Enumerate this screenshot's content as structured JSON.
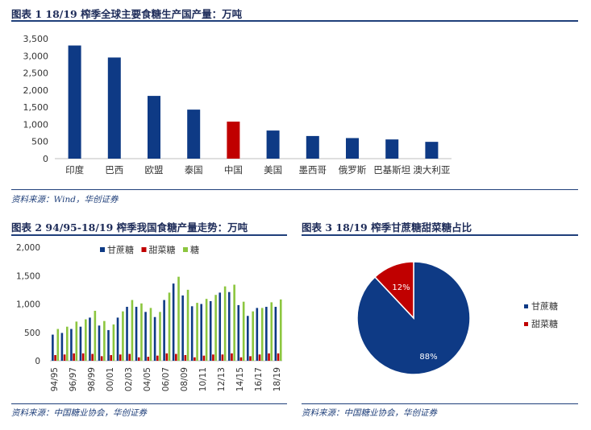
{
  "figure1": {
    "title": "图表 1    18/19 榨季全球主要食糖生产国产量：万吨",
    "source": "资料来源：Wind，华创证券",
    "color_default": "#0e3a85",
    "color_highlight": "#c00000"
  },
  "figure2": {
    "title": "图表 2    94/95-18/19 榨季我国食糖产量走势：万吨",
    "source": "资料来源：中国糖业协会，华创证券"
  },
  "figure3": {
    "title": "图表 3    18/19 榨季甘蔗糖甜菜糖占比",
    "source": "资料来源：中国糖业协会，华创证券"
  },
  "chart_data": [
    {
      "type": "bar",
      "categories": [
        "印度",
        "巴西",
        "欧盟",
        "泰国",
        "中国",
        "美国",
        "墨西哥",
        "俄罗斯",
        "巴基斯坦",
        "澳大利亚"
      ],
      "values": [
        3300,
        2950,
        1830,
        1430,
        1080,
        820,
        660,
        600,
        560,
        490
      ],
      "highlight_index": 4,
      "ylim": [
        0,
        3500
      ],
      "yticks": [
        "0",
        "500",
        "1,000",
        "1,500",
        "2,000",
        "2,500",
        "3,000",
        "3,500"
      ],
      "grid": false
    },
    {
      "type": "bar",
      "categories": [
        "94/95",
        "95/96",
        "96/97",
        "97/98",
        "98/99",
        "99/00",
        "00/01",
        "01/02",
        "02/03",
        "03/04",
        "04/05",
        "05/06",
        "06/07",
        "07/08",
        "08/09",
        "09/10",
        "10/11",
        "11/12",
        "12/13",
        "13/14",
        "14/15",
        "15/16",
        "16/17",
        "17/18",
        "18/19"
      ],
      "x_tick_labels": [
        "94/95",
        "96/97",
        "98/99",
        "00/01",
        "02/03",
        "04/05",
        "06/07",
        "08/09",
        "10/11",
        "12/13",
        "14/15",
        "16/17",
        "18/19"
      ],
      "series": [
        {
          "name": "甘蔗糖",
          "color": "#0e3a85",
          "values": [
            460,
            490,
            560,
            600,
            760,
            620,
            540,
            760,
            950,
            950,
            860,
            770,
            1070,
            1360,
            1150,
            960,
            1000,
            1050,
            1200,
            1210,
            980,
            790,
            930,
            950,
            950
          ]
        },
        {
          "name": "甜菜糖",
          "color": "#c00000",
          "values": [
            100,
            110,
            130,
            130,
            120,
            80,
            100,
            110,
            120,
            60,
            70,
            90,
            130,
            120,
            100,
            60,
            90,
            110,
            110,
            130,
            60,
            80,
            110,
            130,
            130
          ]
        },
        {
          "name": "糖",
          "color": "#8cc63f",
          "values": [
            560,
            600,
            690,
            730,
            880,
            700,
            640,
            870,
            1070,
            1010,
            930,
            860,
            1200,
            1480,
            1250,
            1020,
            1090,
            1160,
            1310,
            1340,
            1040,
            870,
            930,
            1030,
            1080
          ]
        }
      ],
      "ylim": [
        0,
        2000
      ],
      "yticks": [
        "0",
        "500",
        "1,000",
        "1,500",
        "2,000"
      ],
      "legend_position": "top",
      "grid": false
    },
    {
      "type": "pie",
      "labels": [
        "甘蔗糖",
        "甜菜糖"
      ],
      "values": [
        88,
        12
      ],
      "data_labels": [
        "88%",
        "12%"
      ],
      "colors": [
        "#0e3a85",
        "#c00000"
      ],
      "legend_position": "right"
    }
  ]
}
